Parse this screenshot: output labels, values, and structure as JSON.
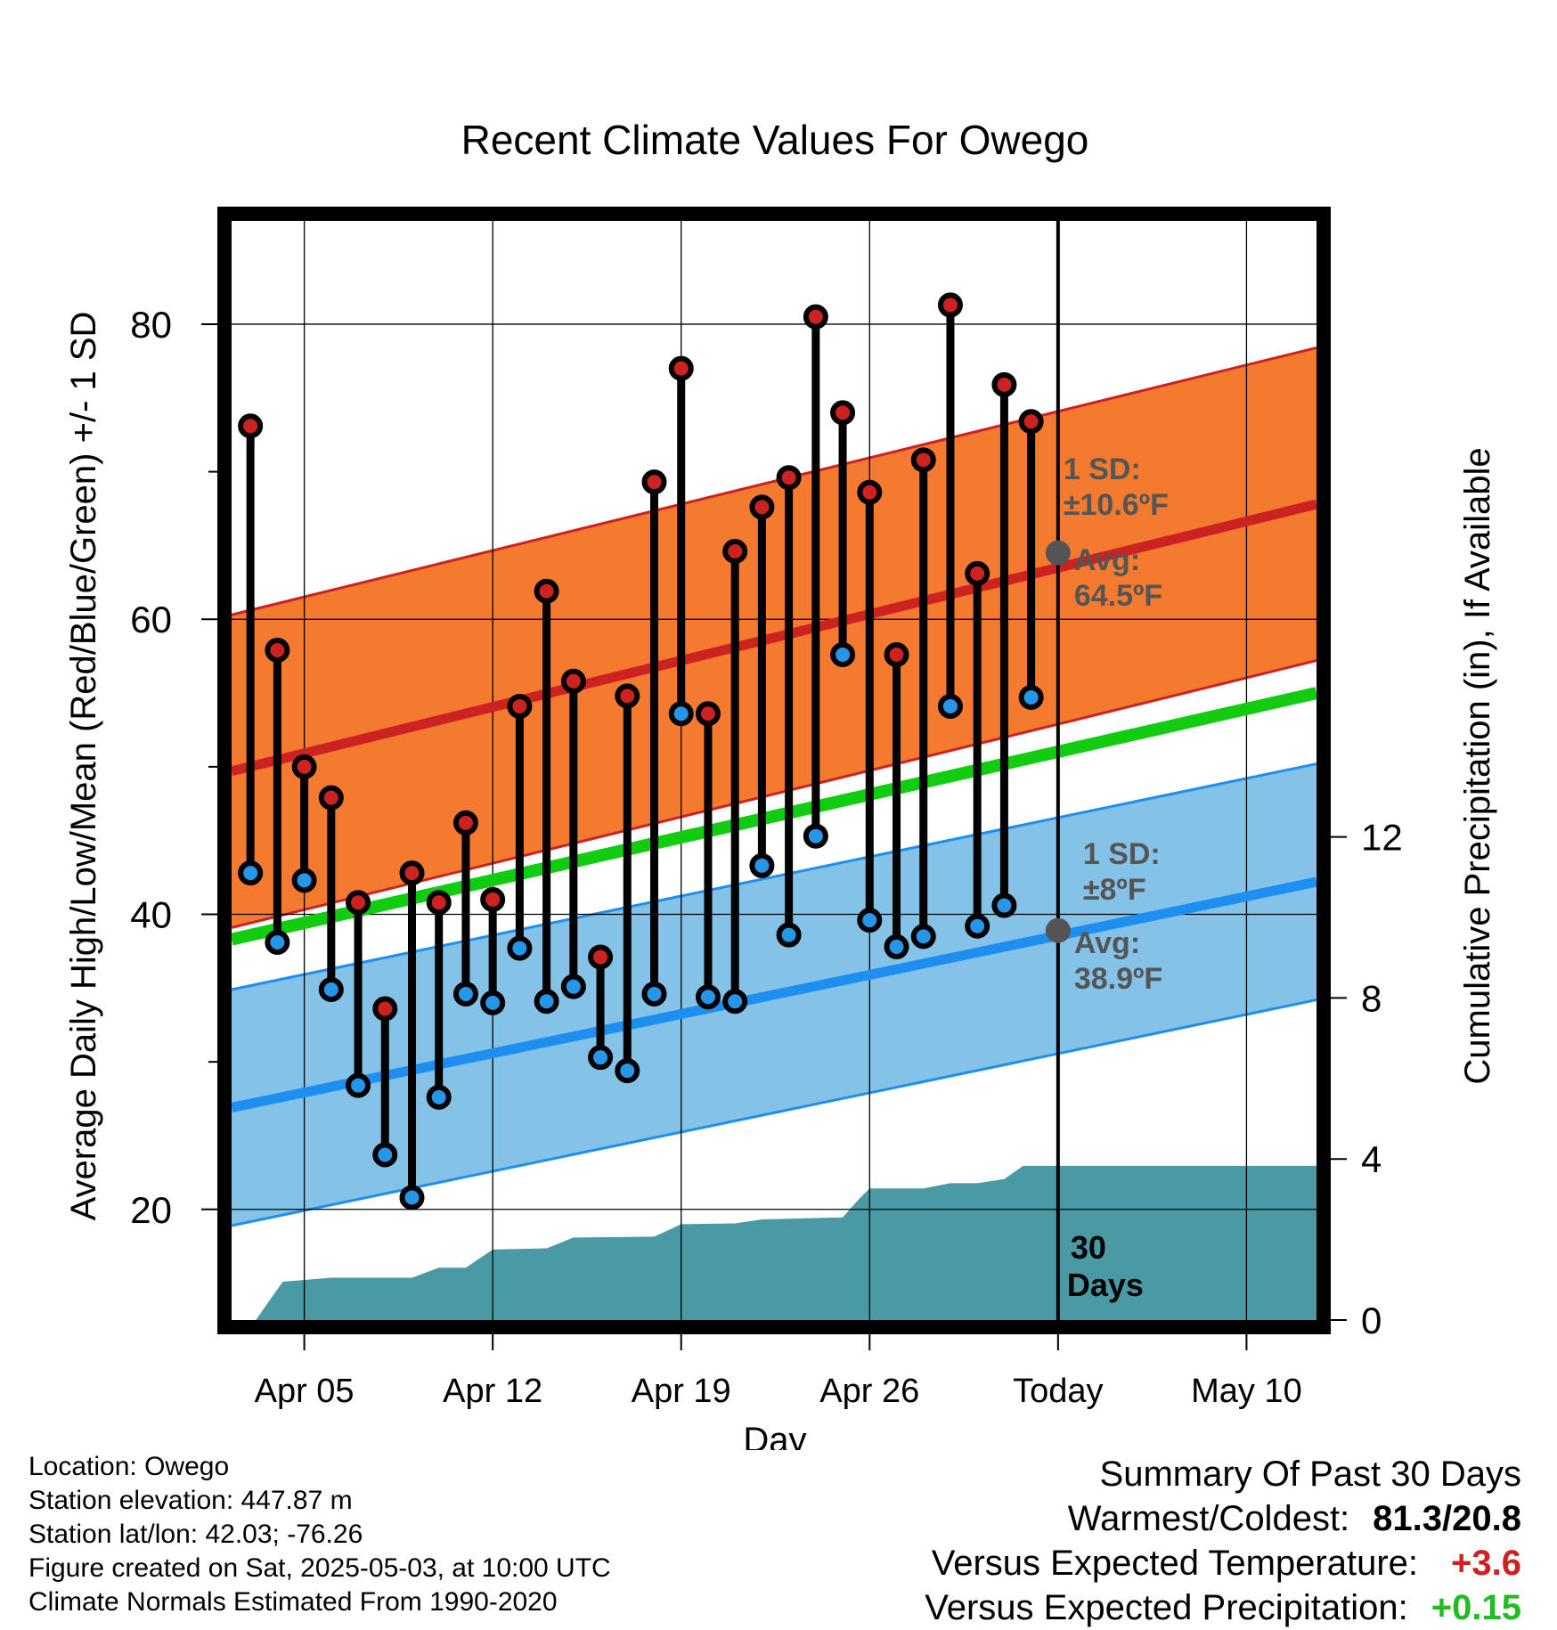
{
  "chart_data": {
    "type": "line",
    "title": "Recent Climate Values For Owego",
    "xlabel": "Day",
    "ylabel": "Average Daily High/Low/Mean (Red/Blue/Green) +/- 1 SD",
    "y2label": "Cumulative Precipitation (in), If Available",
    "x_ticks": [
      "Apr 05",
      "Apr 12",
      "Apr 19",
      "Apr 26",
      "Today",
      "May 10"
    ],
    "x_tick_days": [
      5,
      12,
      19,
      26,
      33,
      40
    ],
    "x_range_days": [
      2.3,
      42.6
    ],
    "ylim": [
      12.5,
      87
    ],
    "y_ticks": [
      20,
      40,
      60,
      80
    ],
    "y2lim": [
      0,
      27.3
    ],
    "y2_ticks": [
      0,
      4,
      8,
      12
    ],
    "grid": true,
    "today_day": 33,
    "days_label": [
      "30",
      "Days"
    ],
    "highs": [
      {
        "day": 3,
        "value": 73.1
      },
      {
        "day": 4,
        "value": 57.9
      },
      {
        "day": 5,
        "value": 50.0
      },
      {
        "day": 6,
        "value": 47.9
      },
      {
        "day": 7,
        "value": 40.8
      },
      {
        "day": 8,
        "value": 33.6
      },
      {
        "day": 9,
        "value": 42.8
      },
      {
        "day": 10,
        "value": 40.8
      },
      {
        "day": 11,
        "value": 46.2
      },
      {
        "day": 12,
        "value": 41.0
      },
      {
        "day": 13,
        "value": 54.1
      },
      {
        "day": 14,
        "value": 61.9
      },
      {
        "day": 15,
        "value": 55.8
      },
      {
        "day": 16,
        "value": 37.1
      },
      {
        "day": 17,
        "value": 54.8
      },
      {
        "day": 18,
        "value": 69.3
      },
      {
        "day": 19,
        "value": 77.0
      },
      {
        "day": 20,
        "value": 53.6
      },
      {
        "day": 21,
        "value": 64.6
      },
      {
        "day": 22,
        "value": 67.6
      },
      {
        "day": 23,
        "value": 69.6
      },
      {
        "day": 24,
        "value": 80.5
      },
      {
        "day": 25,
        "value": 74.0
      },
      {
        "day": 26,
        "value": 68.6
      },
      {
        "day": 27,
        "value": 57.6
      },
      {
        "day": 28,
        "value": 70.8
      },
      {
        "day": 29,
        "value": 81.3
      },
      {
        "day": 30,
        "value": 63.1
      },
      {
        "day": 31,
        "value": 75.9
      },
      {
        "day": 32,
        "value": 73.4
      }
    ],
    "lows": [
      {
        "day": 3,
        "value": 42.8
      },
      {
        "day": 4,
        "value": 38.1
      },
      {
        "day": 5,
        "value": 42.3
      },
      {
        "day": 6,
        "value": 34.9
      },
      {
        "day": 7,
        "value": 28.4
      },
      {
        "day": 8,
        "value": 23.7
      },
      {
        "day": 9,
        "value": 20.8
      },
      {
        "day": 10,
        "value": 27.6
      },
      {
        "day": 11,
        "value": 34.6
      },
      {
        "day": 12,
        "value": 34.0
      },
      {
        "day": 13,
        "value": 37.7
      },
      {
        "day": 14,
        "value": 34.1
      },
      {
        "day": 15,
        "value": 35.1
      },
      {
        "day": 16,
        "value": 30.3
      },
      {
        "day": 17,
        "value": 29.4
      },
      {
        "day": 18,
        "value": 34.6
      },
      {
        "day": 19,
        "value": 53.6
      },
      {
        "day": 20,
        "value": 34.4
      },
      {
        "day": 21,
        "value": 34.1
      },
      {
        "day": 22,
        "value": 43.3
      },
      {
        "day": 23,
        "value": 38.6
      },
      {
        "day": 24,
        "value": 45.3
      },
      {
        "day": 25,
        "value": 57.6
      },
      {
        "day": 26,
        "value": 39.6
      },
      {
        "day": 27,
        "value": 37.8
      },
      {
        "day": 28,
        "value": 38.5
      },
      {
        "day": 29,
        "value": 54.1
      },
      {
        "day": 30,
        "value": 39.2
      },
      {
        "day": 31,
        "value": 40.6
      },
      {
        "day": 32,
        "value": 54.7
      }
    ],
    "normal_high": {
      "start_day": 2.3,
      "start": 49.7,
      "end_day": 42.6,
      "end": 67.8,
      "sd": 10.6,
      "color": "#cc2222",
      "band_color": "#f47a2f"
    },
    "normal_low": {
      "start_day": 2.3,
      "start": 26.9,
      "end_day": 42.6,
      "end": 42.2,
      "sd": 8.0,
      "color": "#1e8ef0",
      "band_color": "#85c2e8"
    },
    "normal_mean": {
      "start_day": 2.3,
      "start": 38.3,
      "end_day": 42.6,
      "end": 55.0,
      "color": "#11cc11"
    },
    "precip_cumulative": [
      {
        "day": 3.2,
        "value": 0
      },
      {
        "day": 4.2,
        "value": 0.95
      },
      {
        "day": 6,
        "value": 1.05
      },
      {
        "day": 9,
        "value": 1.05
      },
      {
        "day": 10,
        "value": 1.3
      },
      {
        "day": 11,
        "value": 1.3
      },
      {
        "day": 12,
        "value": 1.75
      },
      {
        "day": 14,
        "value": 1.78
      },
      {
        "day": 15,
        "value": 2.05
      },
      {
        "day": 18,
        "value": 2.07
      },
      {
        "day": 19,
        "value": 2.38
      },
      {
        "day": 21,
        "value": 2.4
      },
      {
        "day": 22,
        "value": 2.5
      },
      {
        "day": 25,
        "value": 2.55
      },
      {
        "day": 25.6,
        "value": 3.0
      },
      {
        "day": 26,
        "value": 3.27
      },
      {
        "day": 28,
        "value": 3.27
      },
      {
        "day": 29,
        "value": 3.4
      },
      {
        "day": 30,
        "value": 3.4
      },
      {
        "day": 31,
        "value": 3.5
      },
      {
        "day": 31.7,
        "value": 3.83
      },
      {
        "day": 42.6,
        "value": 3.83
      }
    ],
    "precip_color": "#4a9aa5",
    "annotations": {
      "high": {
        "sd_label": "1 SD:",
        "sd_value": "±10.6ºF",
        "avg_label": "Avg:",
        "avg_value": "64.5ºF",
        "avg": 64.5
      },
      "low": {
        "sd_label": "1 SD:",
        "sd_value": "±8ºF",
        "avg_label": "Avg:",
        "avg_value": "38.9ºF",
        "avg": 38.9
      },
      "color": "#555555"
    },
    "marker_high_color": "#cc2222",
    "marker_low_color": "#2596e8"
  },
  "footer_left": {
    "location": "Location: Owego",
    "elevation": "Station elevation: 447.87 m",
    "latlon": "Station lat/lon: 42.03; -76.26",
    "created": "Figure created on Sat, 2025-05-03, at 10:00 UTC",
    "normals": "Climate Normals Estimated From 1990-2020"
  },
  "summary": {
    "heading": "Summary Of Past 30 Days",
    "warmest_label": "Warmest/Coldest:",
    "warmest_value": "81.3/20.8",
    "temp_label": "Versus Expected Temperature:",
    "temp_value": "+3.6",
    "temp_color": "#cc2222",
    "precip_label": "Versus Expected Precipitation:",
    "precip_value": "+0.15",
    "precip_color": "#22bb22"
  }
}
